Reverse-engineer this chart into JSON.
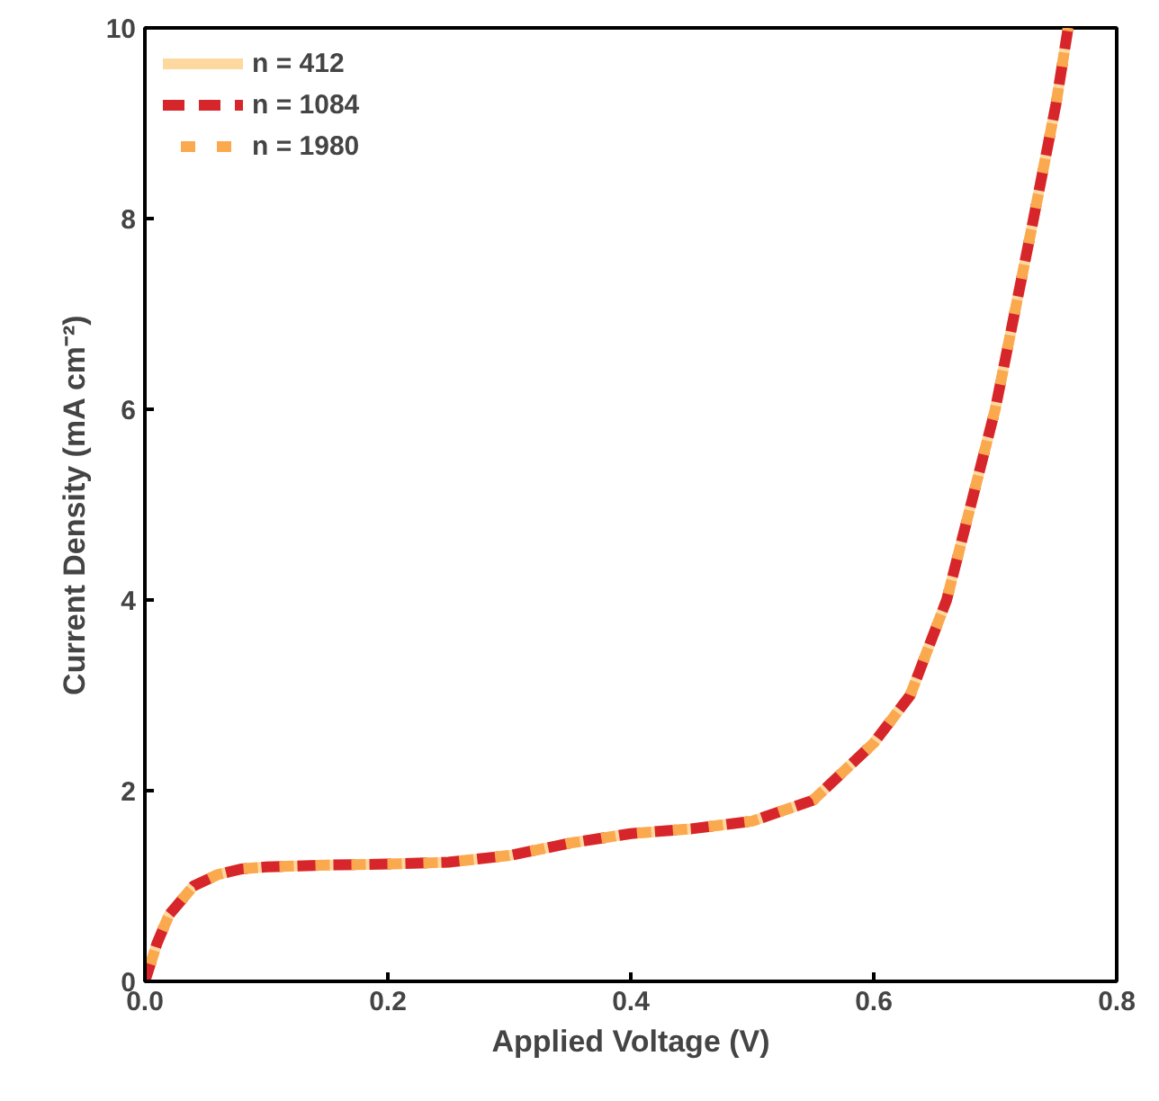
{
  "chart_data": {
    "type": "line",
    "xlabel": "Applied Voltage (V)",
    "ylabel": "Current Density (mA cm⁻²)",
    "x": [
      0,
      0.01,
      0.02,
      0.04,
      0.06,
      0.08,
      0.1,
      0.15,
      0.2,
      0.25,
      0.3,
      0.35,
      0.4,
      0.45,
      0.5,
      0.55,
      0.6,
      0.63,
      0.66,
      0.7,
      0.73,
      0.75,
      0.76
    ],
    "series": [
      {
        "name": "n = 412",
        "color": "#fdd9a0",
        "line_style": "solid",
        "values": [
          0,
          0.4,
          0.7,
          1.0,
          1.12,
          1.18,
          1.2,
          1.22,
          1.23,
          1.25,
          1.32,
          1.45,
          1.55,
          1.6,
          1.68,
          1.9,
          2.5,
          3.0,
          4.0,
          6.0,
          7.9,
          9.2,
          10.0
        ]
      },
      {
        "name": "n = 1084",
        "color": "#d7262b",
        "line_style": "dashed",
        "values": [
          0,
          0.4,
          0.7,
          1.0,
          1.12,
          1.18,
          1.2,
          1.22,
          1.23,
          1.25,
          1.32,
          1.45,
          1.55,
          1.6,
          1.68,
          1.9,
          2.5,
          3.0,
          4.0,
          6.0,
          7.9,
          9.2,
          10.0
        ]
      },
      {
        "name": "n = 1980",
        "color": "#fba94f",
        "line_style": "dotted",
        "values": [
          0,
          0.4,
          0.7,
          1.0,
          1.12,
          1.18,
          1.2,
          1.22,
          1.23,
          1.25,
          1.32,
          1.45,
          1.55,
          1.6,
          1.68,
          1.9,
          2.5,
          3.0,
          4.0,
          6.0,
          7.9,
          9.2,
          10.0
        ]
      }
    ],
    "xlim": [
      0,
      0.8
    ],
    "xticks": [
      {
        "value": 0,
        "label": "0.0"
      },
      0.2,
      0.4,
      0.6,
      0.8
    ],
    "ylim": [
      0,
      10
    ],
    "yticks": [
      0,
      2,
      4,
      6,
      8,
      10
    ],
    "grid": false,
    "legend": "top left",
    "marker": "none"
  }
}
